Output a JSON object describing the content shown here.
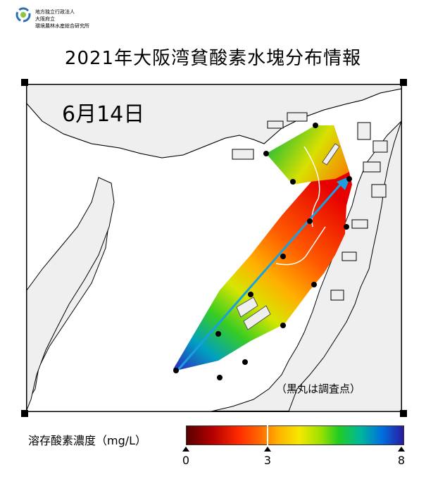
{
  "org": {
    "line1": "地方独立行政法人",
    "line2": "大阪府立",
    "line3": "環境農林水産総合研究所"
  },
  "title": "2021年大阪湾貧酸素水塊分布情報",
  "date": "6月14日",
  "note": "（黒丸は調査点）",
  "legend": {
    "label": "溶存酸素濃度（mg/L）",
    "ticks": [
      {
        "label": "0",
        "value": 0
      },
      {
        "label": "3",
        "value": 3
      },
      {
        "label": "8",
        "value": 8
      }
    ]
  },
  "colors": {
    "low": "#5a0000",
    "mid": "#f5e800",
    "high": "#2a1aa0",
    "arrow": "#1aa0e0"
  }
}
